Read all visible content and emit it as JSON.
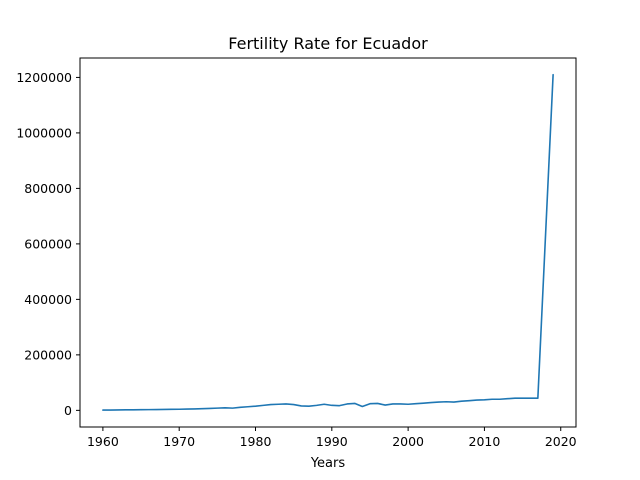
{
  "chart_data": {
    "type": "line",
    "title": "Fertility Rate for Ecuador",
    "xlabel": "Years",
    "ylabel": "",
    "xlim": [
      1957,
      2022
    ],
    "ylim": [
      -60000,
      1270000
    ],
    "x_ticks": [
      1960,
      1970,
      1980,
      1990,
      2000,
      2010,
      2020
    ],
    "y_ticks": [
      0,
      200000,
      400000,
      600000,
      800000,
      1000000,
      1200000
    ],
    "grid": false,
    "series": [
      {
        "name": "",
        "color": "#1f77b4",
        "x": [
          1960,
          1961,
          1962,
          1963,
          1964,
          1965,
          1966,
          1967,
          1968,
          1969,
          1970,
          1971,
          1972,
          1973,
          1974,
          1975,
          1976,
          1977,
          1978,
          1979,
          1980,
          1981,
          1982,
          1983,
          1984,
          1985,
          1986,
          1987,
          1988,
          1989,
          1990,
          1991,
          1992,
          1993,
          1994,
          1995,
          1996,
          1997,
          1998,
          1999,
          2000,
          2001,
          2002,
          2003,
          2004,
          2005,
          2006,
          2007,
          2008,
          2009,
          2010,
          2011,
          2012,
          2013,
          2014,
          2015,
          2016,
          2017,
          2019
        ],
        "y": [
          1000,
          1200,
          1500,
          1800,
          2000,
          2300,
          2600,
          3000,
          3300,
          3700,
          4000,
          4500,
          5000,
          6000,
          7000,
          8000,
          9000,
          8000,
          11000,
          13000,
          15000,
          18000,
          21000,
          22000,
          23000,
          21000,
          16000,
          15000,
          18000,
          22000,
          18000,
          17000,
          23000,
          25000,
          14000,
          24000,
          25000,
          19000,
          23000,
          23000,
          22000,
          24000,
          26000,
          28000,
          30000,
          31000,
          30000,
          33000,
          35000,
          37000,
          38000,
          40000,
          40000,
          42000,
          44000,
          44000,
          44000,
          44000,
          1210000
        ]
      }
    ]
  }
}
